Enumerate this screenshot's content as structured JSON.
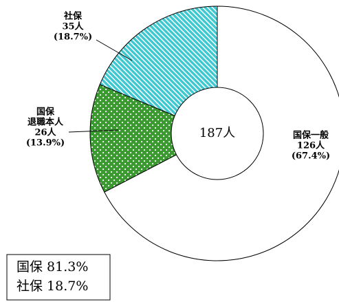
{
  "chart_data": {
    "type": "donut",
    "categories": [
      [
        "国保一般"
      ],
      [
        "国保",
        "退職本人"
      ],
      [
        "社保"
      ]
    ],
    "values": [
      126,
      26,
      35
    ],
    "value_labels": [
      "126人",
      "26人",
      "35人"
    ],
    "percent_labels": [
      "(67.4%)",
      "(13.9%)",
      "(18.7%)"
    ],
    "colors": [
      "#ffffff",
      "#3a9a30",
      "#40c8d0"
    ],
    "center_label": "187人",
    "summary": [
      "国保 81.3%",
      "社保 18.7%"
    ]
  }
}
